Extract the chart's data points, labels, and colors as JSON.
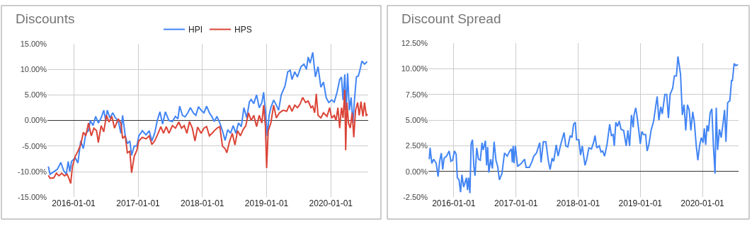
{
  "chart_data": [
    {
      "type": "line",
      "title": "Discounts",
      "legend": "top",
      "grid": true,
      "xlim": [
        "2015-08-05",
        "2020-07-31"
      ],
      "xticks": [
        "2016-01-01",
        "2017-01-01",
        "2018-01-01",
        "2019-01-01",
        "2020-01-01"
      ],
      "ylim": [
        -15,
        15
      ],
      "yticks": [
        {
          "value": -15,
          "label": "-15.00%"
        },
        {
          "value": -10,
          "label": "-10.00%"
        },
        {
          "value": -5,
          "label": "-5.00%"
        },
        {
          "value": 0,
          "label": "0.00%"
        },
        {
          "value": 5,
          "label": "5.00%"
        },
        {
          "value": 10,
          "label": "10.00%"
        },
        {
          "value": 15,
          "label": "15.00%"
        }
      ],
      "series": [
        {
          "name": "HPI",
          "color": "#4285f4",
          "x": [
            "2015-08-10",
            "2015-08-20",
            "2015-09-10",
            "2015-10-01",
            "2015-10-20",
            "2015-11-05",
            "2015-11-20",
            "2015-12-01",
            "2015-12-10",
            "2015-12-20",
            "2016-01-10",
            "2016-01-25",
            "2016-02-10",
            "2016-02-25",
            "2016-03-10",
            "2016-03-25",
            "2016-04-05",
            "2016-04-20",
            "2016-05-05",
            "2016-05-20",
            "2016-06-05",
            "2016-06-20",
            "2016-07-01",
            "2016-07-10",
            "2016-07-25",
            "2016-08-10",
            "2016-08-25",
            "2016-09-10",
            "2016-09-25",
            "2016-10-05",
            "2016-10-20",
            "2016-11-01",
            "2016-11-15",
            "2016-11-25",
            "2016-12-10",
            "2016-12-25",
            "2017-01-05",
            "2017-01-25",
            "2017-02-15",
            "2017-03-05",
            "2017-03-20",
            "2017-04-05",
            "2017-04-20",
            "2017-05-05",
            "2017-05-20",
            "2017-06-05",
            "2017-06-25",
            "2017-07-15",
            "2017-08-01",
            "2017-08-15",
            "2017-08-25",
            "2017-09-10",
            "2017-09-25",
            "2017-10-10",
            "2017-10-25",
            "2017-11-10",
            "2017-11-25",
            "2017-12-10",
            "2017-12-25",
            "2018-01-10",
            "2018-01-25",
            "2018-02-10",
            "2018-02-25",
            "2018-03-10",
            "2018-03-25",
            "2018-04-10",
            "2018-04-25",
            "2018-05-10",
            "2018-05-25",
            "2018-06-10",
            "2018-06-25",
            "2018-07-10",
            "2018-07-25",
            "2018-08-10",
            "2018-08-25",
            "2018-09-10",
            "2018-09-25",
            "2018-10-05",
            "2018-10-20",
            "2018-11-05",
            "2018-11-20",
            "2018-12-05",
            "2018-12-15",
            "2018-12-25",
            "2019-01-05",
            "2019-01-15",
            "2019-01-25",
            "2019-02-10",
            "2019-02-25",
            "2019-03-10",
            "2019-03-25",
            "2019-04-15",
            "2019-05-01",
            "2019-05-15",
            "2019-05-25",
            "2019-06-10",
            "2019-06-25",
            "2019-07-15",
            "2019-08-01",
            "2019-08-15",
            "2019-08-25",
            "2019-09-05",
            "2019-09-20",
            "2019-10-05",
            "2019-10-20",
            "2019-11-05",
            "2019-11-20",
            "2019-12-05",
            "2019-12-20",
            "2020-01-05",
            "2020-01-20",
            "2020-02-05",
            "2020-02-20",
            "2020-03-01",
            "2020-03-10",
            "2020-03-20",
            "2020-03-28",
            "2020-04-05",
            "2020-04-15",
            "2020-04-25",
            "2020-05-05",
            "2020-05-15",
            "2020-05-25",
            "2020-06-05",
            "2020-06-15",
            "2020-06-25",
            "2020-07-10",
            "2020-07-25"
          ],
          "values": [
            -9,
            -10.5,
            -10,
            -9.5,
            -8.2,
            -9.8,
            -10.5,
            -8,
            -10,
            -8,
            -7.3,
            -8.3,
            -4,
            -5.5,
            -2.5,
            -2,
            0,
            -1,
            0.8,
            -0.5,
            0.5,
            2,
            0,
            2,
            0.5,
            1.5,
            0.5,
            0,
            -2.5,
            1,
            -3,
            -4.5,
            -4,
            -6.8,
            -5,
            -5,
            -3,
            -2,
            -2.8,
            -2,
            -4,
            -2.5,
            0,
            1.7,
            -0.7,
            1.7,
            0,
            -0.2,
            0.8,
            0.3,
            2.8,
            1,
            0.7,
            1.5,
            2.5,
            1.5,
            1,
            2.7,
            2,
            1.5,
            2.8,
            1.5,
            0.7,
            -0.2,
            0.8,
            -0.5,
            -2,
            -3.9,
            -1.8,
            -2.5,
            -1,
            -2.5,
            -0.5,
            -1.2,
            2.5,
            0.5,
            3.6,
            4.1,
            3.3,
            5,
            2.5,
            3.5,
            5.5,
            2,
            -3,
            1,
            2.5,
            4,
            3,
            2,
            5,
            6.7,
            9.5,
            9.8,
            8,
            9.5,
            8.5,
            10.5,
            11,
            10,
            12.4,
            11.2,
            13.3,
            8.5,
            10.5,
            6.5,
            7.5,
            4.5,
            3.5,
            4,
            3.6,
            5.5,
            8,
            8.5,
            4,
            9,
            2,
            9.2,
            2,
            4.5,
            -0.5,
            4.5,
            8.5,
            8.7,
            10,
            11.6,
            11,
            11.5
          ]
        },
        {
          "name": "HPS",
          "color": "#db4437",
          "x": [
            "2015-08-10",
            "2015-08-20",
            "2015-09-10",
            "2015-09-25",
            "2015-10-10",
            "2015-10-25",
            "2015-11-10",
            "2015-11-25",
            "2015-12-05",
            "2015-12-15",
            "2015-12-25",
            "2016-01-10",
            "2016-01-25",
            "2016-02-10",
            "2016-02-25",
            "2016-03-10",
            "2016-03-25",
            "2016-04-10",
            "2016-04-25",
            "2016-05-10",
            "2016-05-20",
            "2016-06-05",
            "2016-06-20",
            "2016-07-05",
            "2016-07-20",
            "2016-08-05",
            "2016-08-20",
            "2016-09-10",
            "2016-09-25",
            "2016-10-05",
            "2016-10-20",
            "2016-11-01",
            "2016-11-15",
            "2016-11-25",
            "2016-12-10",
            "2016-12-25",
            "2017-01-05",
            "2017-01-25",
            "2017-02-15",
            "2017-03-05",
            "2017-03-20",
            "2017-04-05",
            "2017-04-25",
            "2017-05-10",
            "2017-05-25",
            "2017-06-10",
            "2017-06-25",
            "2017-07-15",
            "2017-08-01",
            "2017-08-20",
            "2017-09-05",
            "2017-09-20",
            "2017-10-05",
            "2017-10-20",
            "2017-11-05",
            "2017-11-20",
            "2017-12-05",
            "2017-12-25",
            "2018-01-10",
            "2018-01-25",
            "2018-02-10",
            "2018-02-25",
            "2018-03-10",
            "2018-03-25",
            "2018-04-10",
            "2018-04-25",
            "2018-05-10",
            "2018-05-20",
            "2018-06-05",
            "2018-06-20",
            "2018-07-05",
            "2018-07-20",
            "2018-08-05",
            "2018-08-20",
            "2018-09-05",
            "2018-09-20",
            "2018-10-05",
            "2018-10-20",
            "2018-11-05",
            "2018-11-20",
            "2018-12-05",
            "2018-12-15",
            "2018-12-25",
            "2019-01-01",
            "2019-01-10",
            "2019-01-25",
            "2019-02-10",
            "2019-02-25",
            "2019-03-15",
            "2019-04-05",
            "2019-04-25",
            "2019-05-10",
            "2019-05-25",
            "2019-06-10",
            "2019-06-25",
            "2019-07-10",
            "2019-07-25",
            "2019-08-10",
            "2019-08-25",
            "2019-09-10",
            "2019-09-20",
            "2019-10-01",
            "2019-10-10",
            "2019-10-20",
            "2019-11-05",
            "2019-11-20",
            "2019-12-10",
            "2019-12-25",
            "2020-01-05",
            "2020-01-20",
            "2020-01-30",
            "2020-02-10",
            "2020-02-20",
            "2020-03-01",
            "2020-03-10",
            "2020-03-20",
            "2020-03-25",
            "2020-04-01",
            "2020-04-10",
            "2020-04-20",
            "2020-05-01",
            "2020-05-10",
            "2020-05-20",
            "2020-06-01",
            "2020-06-10",
            "2020-06-20",
            "2020-07-01",
            "2020-07-10",
            "2020-07-20",
            "2020-07-28"
          ],
          "values": [
            -10.7,
            -11.3,
            -11.2,
            -10.3,
            -10.8,
            -10.3,
            -10.8,
            -10.5,
            -11.3,
            -12.3,
            -9,
            -7,
            -6,
            -4.7,
            -2.3,
            -3,
            -0.5,
            -3,
            -1.5,
            -2,
            -4.3,
            -1,
            -2.2,
            1,
            -0.3,
            0.8,
            -1.5,
            0.3,
            -0.5,
            -3.5,
            -3,
            -6.3,
            -6,
            -10.2,
            -7,
            -5.8,
            -4,
            -3.3,
            -3.6,
            -3,
            -4.7,
            -4,
            -2.5,
            -1.2,
            -2.5,
            -1.2,
            -2.5,
            -1,
            -1.5,
            -0.3,
            -1.5,
            -1,
            -2.5,
            -0.2,
            -1.5,
            -4,
            -1.3,
            -2.5,
            -1.5,
            -1.2,
            -3,
            -2.5,
            -2,
            -1.5,
            -1.2,
            -5,
            -5.5,
            -6.3,
            -4,
            -2.5,
            -4.8,
            -2,
            -3,
            -1.8,
            -1,
            1.5,
            0,
            1,
            -1.2,
            1,
            -0.5,
            3,
            -1,
            -9.3,
            -2,
            -0.5,
            3,
            0.5,
            1.5,
            2,
            1.8,
            3,
            1.8,
            3,
            2.5,
            3.2,
            4.5,
            3.5,
            3.8,
            2.5,
            2.8,
            1.5,
            5.2,
            1,
            0.5,
            1.5,
            0.8,
            2.5,
            0.5,
            1,
            0,
            2.5,
            -1.5,
            2.5,
            0.5,
            6,
            -5.8,
            3.5,
            -0.5,
            -1.5,
            1.5,
            -3.3,
            2,
            3.5,
            1,
            3.7,
            0.8,
            3.5,
            1,
            1.2
          ]
        }
      ]
    },
    {
      "type": "line",
      "title": "Discount Spread",
      "grid": true,
      "xlim": [
        "2015-08-05",
        "2020-07-31"
      ],
      "xticks": [
        "2016-01-01",
        "2017-01-01",
        "2018-01-01",
        "2019-01-01",
        "2020-01-01"
      ],
      "ylim": [
        -2.5,
        12.5
      ],
      "yticks": [
        {
          "value": -2.5,
          "label": "-2.50%"
        },
        {
          "value": 0,
          "label": "0.00%"
        },
        {
          "value": 2.5,
          "label": "2.50%"
        },
        {
          "value": 5,
          "label": "5.00%"
        },
        {
          "value": 7.5,
          "label": "7.50%"
        },
        {
          "value": 10,
          "label": "10.00%"
        },
        {
          "value": 12.5,
          "label": "12.50%"
        }
      ],
      "series": [
        {
          "color": "#4285f4",
          "x": [
            "2015-08-10",
            "2015-08-15",
            "2015-08-25",
            "2015-09-05",
            "2015-09-20",
            "2015-10-01",
            "2015-10-10",
            "2015-10-20",
            "2015-10-28",
            "2015-11-05",
            "2015-11-20",
            "2015-12-05",
            "2015-12-15",
            "2015-12-25",
            "2016-01-05",
            "2016-01-15",
            "2016-01-22",
            "2016-02-01",
            "2016-02-10",
            "2016-02-18",
            "2016-02-28",
            "2016-03-05",
            "2016-03-15",
            "2016-03-22",
            "2016-03-28",
            "2016-04-05",
            "2016-04-12",
            "2016-04-20",
            "2016-04-28",
            "2016-05-05",
            "2016-05-15",
            "2016-05-25",
            "2016-06-05",
            "2016-06-15",
            "2016-06-22",
            "2016-07-05",
            "2016-07-12",
            "2016-07-18",
            "2016-07-25",
            "2016-08-05",
            "2016-08-15",
            "2016-08-25",
            "2016-09-05",
            "2016-09-15",
            "2016-09-25",
            "2016-10-10",
            "2016-10-25",
            "2016-11-10",
            "2016-11-25",
            "2016-12-05",
            "2016-12-10",
            "2016-12-15",
            "2016-12-20",
            "2016-12-28",
            "2017-01-10",
            "2017-02-01",
            "2017-02-20",
            "2017-03-01",
            "2017-03-20",
            "2017-04-05",
            "2017-04-15",
            "2017-05-01",
            "2017-05-20",
            "2017-05-28",
            "2017-06-10",
            "2017-06-25",
            "2017-07-10",
            "2017-07-20",
            "2017-08-01",
            "2017-08-10",
            "2017-08-25",
            "2017-09-05",
            "2017-09-20",
            "2017-10-10",
            "2017-10-20",
            "2017-11-01",
            "2017-11-15",
            "2017-11-25",
            "2017-12-05",
            "2017-12-15",
            "2017-12-22",
            "2018-01-05",
            "2018-01-15",
            "2018-01-25",
            "2018-02-10",
            "2018-02-20",
            "2018-03-05",
            "2018-03-20",
            "2018-04-01",
            "2018-04-10",
            "2018-04-20",
            "2018-05-05",
            "2018-05-15",
            "2018-05-25",
            "2018-06-05",
            "2018-06-20",
            "2018-07-05",
            "2018-07-15",
            "2018-07-25",
            "2018-08-01",
            "2018-08-10",
            "2018-08-20",
            "2018-08-30",
            "2018-09-10",
            "2018-09-25",
            "2018-10-10",
            "2018-10-20",
            "2018-10-30",
            "2018-11-10",
            "2018-11-20",
            "2018-11-25",
            "2018-12-05",
            "2018-12-15",
            "2019-01-01",
            "2019-01-10",
            "2019-01-20",
            "2019-02-01",
            "2019-02-10",
            "2019-02-20",
            "2019-03-05",
            "2019-03-20",
            "2019-04-01",
            "2019-04-10",
            "2019-04-20",
            "2019-05-01",
            "2019-05-10",
            "2019-05-25",
            "2019-06-05",
            "2019-06-15",
            "2019-06-25",
            "2019-07-10",
            "2019-07-20",
            "2019-08-01",
            "2019-08-10",
            "2019-08-25",
            "2019-09-05",
            "2019-09-15",
            "2019-09-25",
            "2019-10-05",
            "2019-10-15",
            "2019-10-25",
            "2019-11-05",
            "2019-11-15",
            "2019-11-25",
            "2019-12-05",
            "2019-12-15",
            "2019-12-25",
            "2020-01-05",
            "2020-01-12",
            "2020-01-20",
            "2020-01-28",
            "2020-02-05",
            "2020-02-15",
            "2020-02-25",
            "2020-03-05",
            "2020-03-15",
            "2020-03-22",
            "2020-03-30",
            "2020-04-10",
            "2020-04-20",
            "2020-05-01",
            "2020-05-10",
            "2020-05-18",
            "2020-05-28",
            "2020-06-10",
            "2020-06-20",
            "2020-06-25",
            "2020-07-05",
            "2020-07-15",
            "2020-07-28"
          ],
          "values": [
            1.2,
            2.3,
            0.8,
            1.2,
            0.8,
            -0.5,
            1,
            1.8,
            0.2,
            1.3,
            1.5,
            2,
            1,
            1.1,
            2,
            1.7,
            -0.6,
            -0.8,
            -2,
            -0.3,
            -1.5,
            -1.2,
            -0.6,
            -1.8,
            -0.6,
            -2.1,
            2.7,
            3.1,
            0.5,
            -0.4,
            2.3,
            1.2,
            1.1,
            2.8,
            2.1,
            3,
            0.6,
            2.4,
            -0.1,
            1.2,
            0.3,
            2.9,
            1.1,
            0.5,
            -0.8,
            -0.2,
            1.8,
            1.5,
            2,
            2.2,
            0.9,
            2.5,
            0.8,
            2.5,
            0.5,
            0.8,
            1.2,
            0.4,
            0.4,
            1,
            1.5,
            1.8,
            2.8,
            0.9,
            2.9,
            2.9,
            1,
            0.2,
            1.3,
            1,
            2.6,
            1.5,
            2.6,
            3.8,
            2.5,
            2.4,
            3.5,
            3.3,
            4.6,
            4.8,
            3.1,
            3.1,
            1.6,
            2.5,
            0.6,
            1.2,
            2.3,
            2.2,
            2.8,
            3.5,
            2.3,
            2.5,
            1.9,
            2,
            1.5,
            2.7,
            4.6,
            3.5,
            3.6,
            2.5,
            4.8,
            4.4,
            4.9,
            4.1,
            4,
            2.5,
            4,
            2.5,
            5.5,
            4.3,
            5.5,
            6.2,
            5.1,
            2.7,
            3.9,
            3.6,
            3.6,
            2,
            2.6,
            4,
            4.9,
            6.3,
            7.3,
            5,
            6.3,
            5.6,
            7.5,
            7.5,
            5.2,
            7.5,
            8.1,
            9.3,
            9.3,
            11.2,
            9.5,
            5.5,
            6.5,
            4,
            6.5,
            6,
            4,
            5.8,
            4.7,
            2.6,
            1.1,
            2.5,
            3.3,
            2.8,
            4.2,
            2.6,
            4.5,
            3.9,
            5.7,
            6.1,
            2.6,
            -0.2,
            6.2,
            2.1,
            4.1,
            3.3,
            4.7,
            6,
            2.9,
            6.7,
            6.9,
            8.9,
            8.8,
            10.5,
            10.3,
            10.4
          ]
        }
      ]
    }
  ]
}
